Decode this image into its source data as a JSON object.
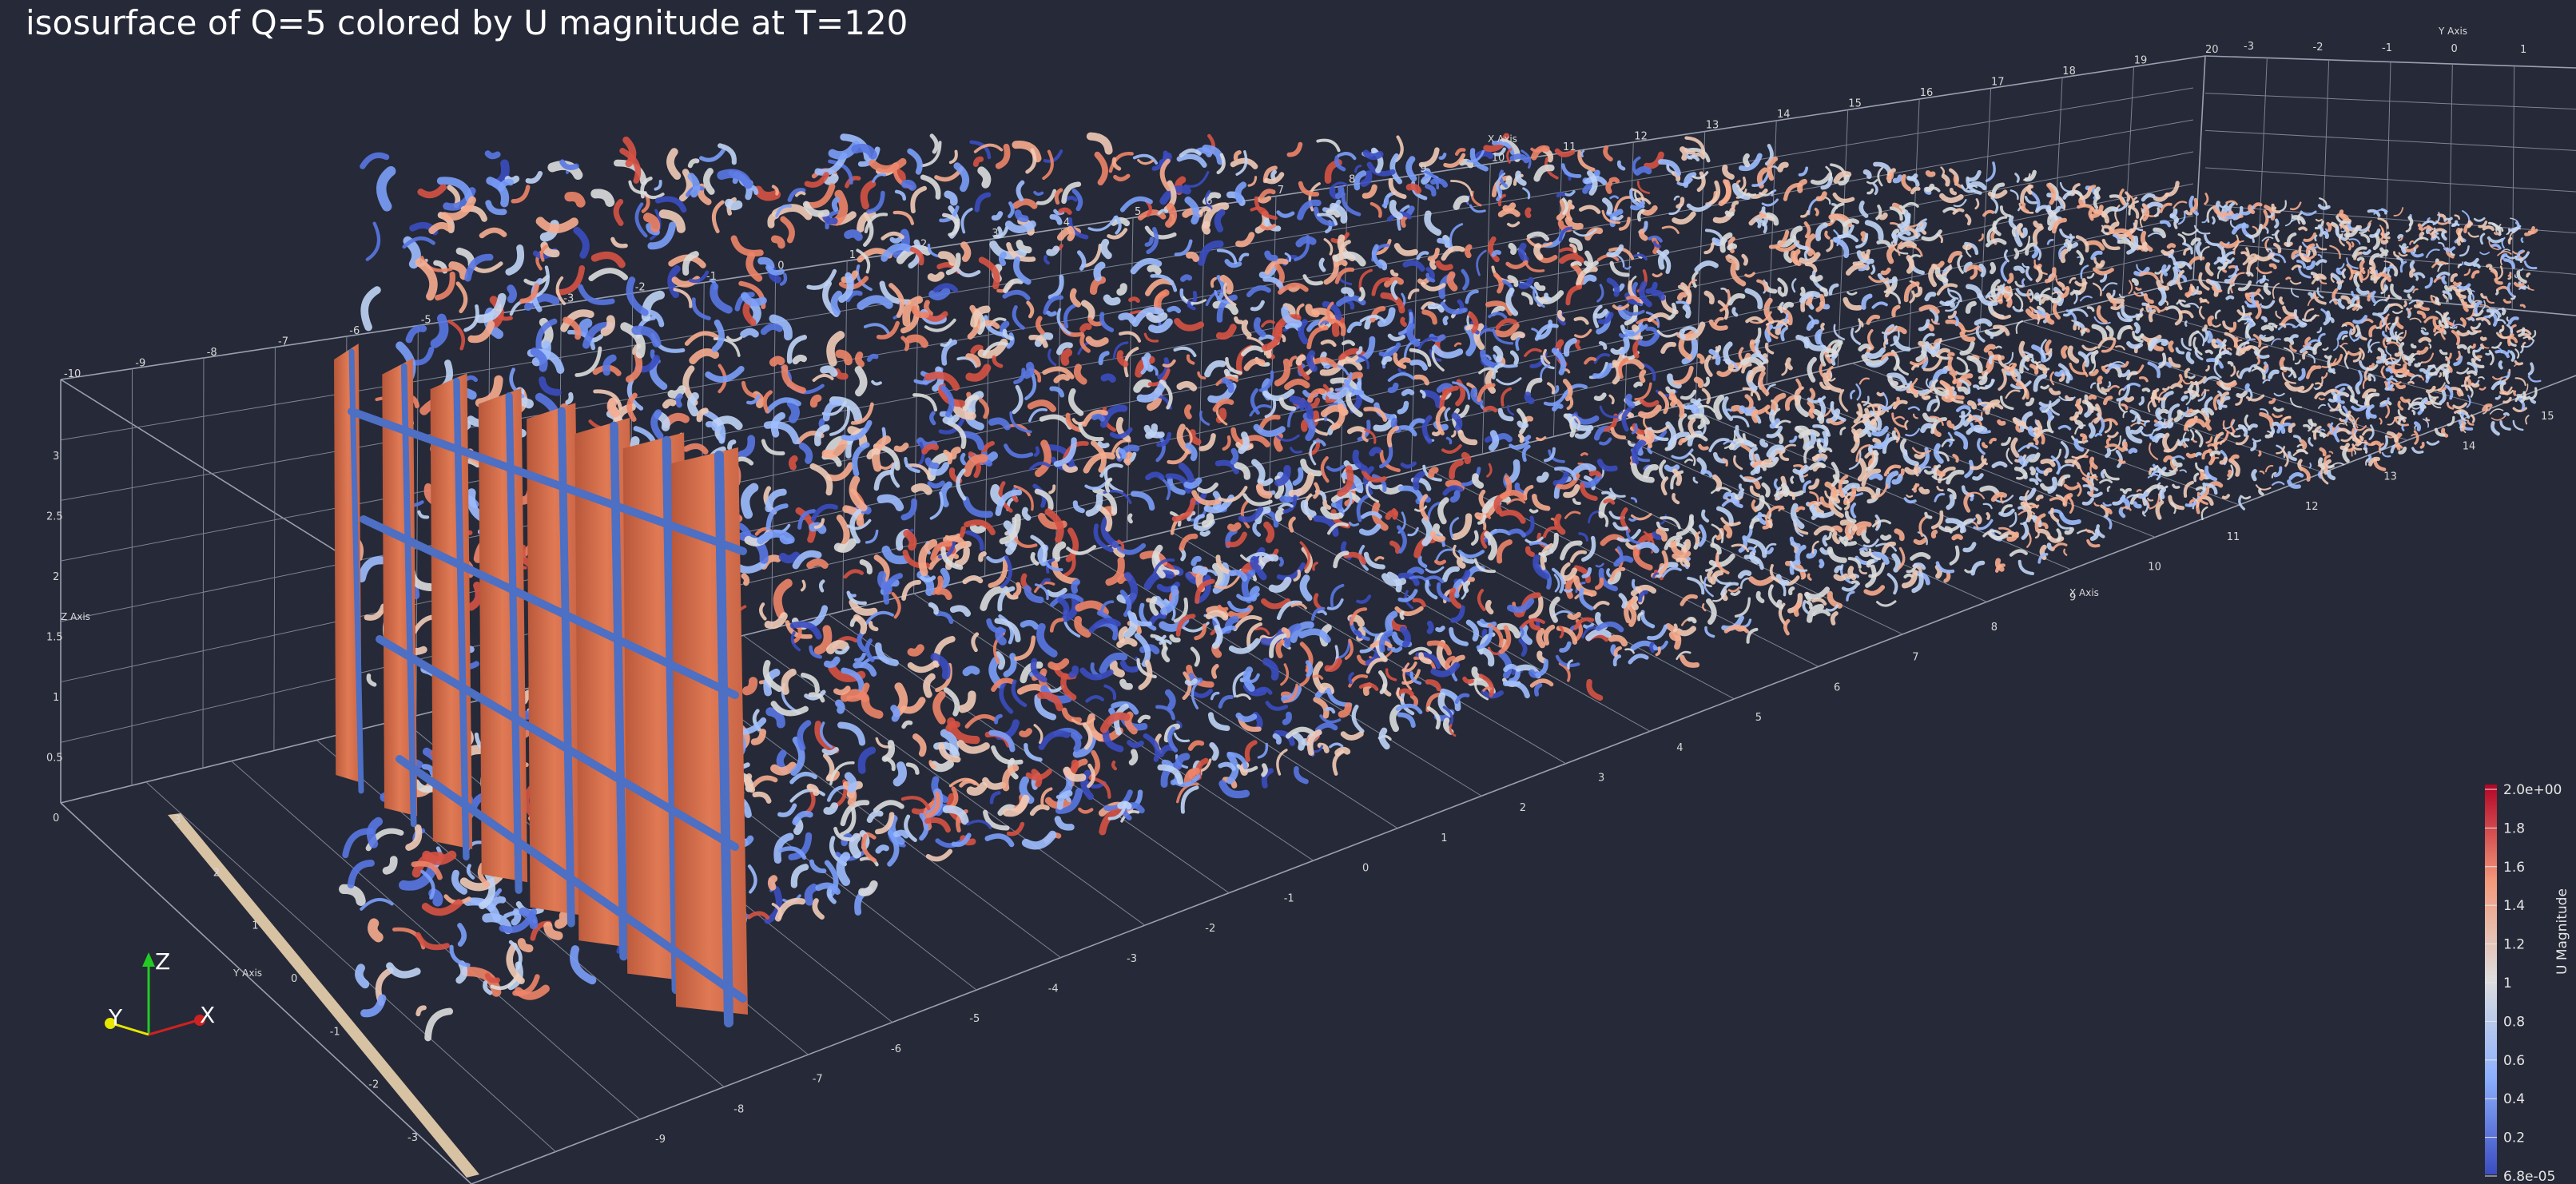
{
  "title": "isosurface of Q=5 colored by U magnitude at T=120",
  "axes": {
    "x_axis_label": "X Axis",
    "y_axis_label": "Y Axis",
    "z_axis_label": "Z Axis",
    "back_x_ticks": [
      "-10",
      "-9",
      "-8",
      "-7",
      "-6",
      "-5",
      "-4",
      "-3",
      "-2",
      "-1",
      "0",
      "1",
      "2",
      "3",
      "4",
      "5",
      "6",
      "7",
      "8",
      "9",
      "10",
      "11",
      "12",
      "13",
      "14",
      "15",
      "16",
      "17",
      "18",
      "19",
      "20"
    ],
    "front_x_ticks": [
      "-9",
      "-8",
      "-7",
      "-6",
      "-5",
      "-4",
      "-3",
      "-2",
      "-1",
      "0",
      "1",
      "2",
      "3",
      "4",
      "5",
      "6",
      "7",
      "8",
      "9",
      "10",
      "11",
      "12",
      "13",
      "14",
      "15"
    ],
    "y_ticks_left": [
      "3",
      "2",
      "1",
      "0",
      "-1",
      "-2",
      "-3"
    ],
    "y_ticks_top": [
      "-3",
      "-2",
      "-1",
      "0",
      "1"
    ],
    "z_ticks": [
      "3",
      "2.5",
      "2",
      "1.5",
      "1",
      "0.5",
      "0"
    ]
  },
  "colorbar": {
    "title": "U Magnitude",
    "ticks": [
      "2.0e+00",
      "1.8",
      "1.6",
      "1.4",
      "1.2",
      "1",
      "0.8",
      "0.6",
      "0.4",
      "0.2",
      "6.8e-05"
    ],
    "min": 6.8e-05,
    "max": 2.0,
    "low_color": "#3b4cc0",
    "mid_color": "#dddddd",
    "high_color": "#b40426"
  },
  "orientation": {
    "x_label": "X",
    "y_label": "Y",
    "z_label": "Z",
    "x_color": "#cc2222",
    "y_color": "#e6e600",
    "z_color": "#22cc22"
  },
  "colors": {
    "background": "#262937",
    "grid": "#9aa0b0",
    "plate": "#d9734e",
    "grid_bar": "#4d6fc4",
    "floor_bar": "#d8c2a4"
  }
}
